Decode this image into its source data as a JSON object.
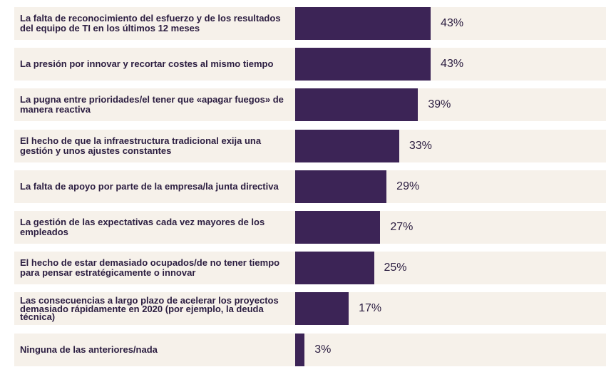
{
  "chart_data": {
    "type": "bar",
    "categories": [
      "La falta de reconocimiento del esfuerzo y de los resultados del equipo de TI en los últimos 12 meses",
      "La presión por innovar y recortar costes al mismo tiempo",
      "La pugna entre prioridades/el tener que «apagar fuegos» de manera reactiva",
      "El hecho de que la infraestructura tradicional exija una gestión y unos ajustes constantes",
      "La falta de apoyo por parte de la empresa/la junta directiva",
      "La gestión de las expectativas cada vez mayores de los empleados",
      "El hecho de estar demasiado ocupados/de no tener tiempo para pensar estratégicamente o innovar",
      "Las consecuencias a largo plazo de acelerar los proyectos demasiado rápidamente en 2020 (por ejemplo, la deuda técnica)",
      "Ninguna de las anteriores/nada"
    ],
    "values": [
      43,
      43,
      39,
      33,
      29,
      27,
      25,
      17,
      3
    ],
    "value_labels": [
      "43%",
      "43%",
      "39%",
      "33%",
      "29%",
      "27%",
      "25%",
      "17%",
      "3%"
    ],
    "color": "#3c2456"
  }
}
